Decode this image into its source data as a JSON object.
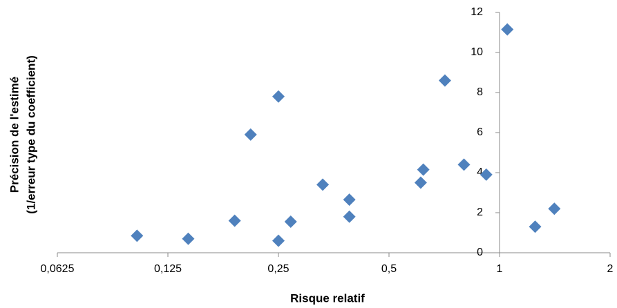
{
  "chart_data": {
    "type": "scatter",
    "xlabel": "Risque relatif",
    "ylabel": [
      "Précision de l'estimé",
      "(1/erreur type du coefficient)"
    ],
    "xscale": "log2",
    "y_axis_crosses_x": 1,
    "xlim": [
      0.0625,
      2
    ],
    "xticks": [
      {
        "value": 0.0625,
        "label": "0,0625"
      },
      {
        "value": 0.125,
        "label": "0,125"
      },
      {
        "value": 0.25,
        "label": "0,25"
      },
      {
        "value": 0.5,
        "label": "0,5"
      },
      1,
      2
    ],
    "ylim": [
      0,
      12
    ],
    "yticks": [
      0,
      2,
      4,
      6,
      8,
      10,
      12
    ],
    "grid": false,
    "series": [
      {
        "color": "#4f81bd",
        "x": [
          0.103,
          0.142,
          0.19,
          0.21,
          0.25,
          0.25,
          0.27,
          0.33,
          0.39,
          0.39,
          0.61,
          0.62,
          0.71,
          0.8,
          0.92,
          1.05,
          1.25,
          1.41
        ],
        "values": [
          0.85,
          0.7,
          1.6,
          5.9,
          7.8,
          0.6,
          1.55,
          3.4,
          2.65,
          1.8,
          3.5,
          4.15,
          8.6,
          4.4,
          3.9,
          11.15,
          1.3,
          2.2
        ]
      }
    ]
  }
}
